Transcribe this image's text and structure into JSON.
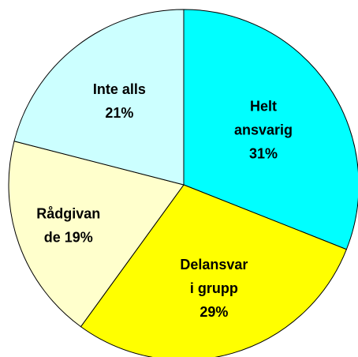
{
  "chart_data": {
    "type": "pie",
    "labels": [
      [
        "Helt",
        "ansvarig",
        "31%"
      ],
      [
        "Delansvar",
        "i grupp",
        "29%"
      ],
      [
        "Rådgivan",
        "de 19%"
      ],
      [
        "Inte alls",
        "21%"
      ]
    ],
    "values": [
      31,
      29,
      19,
      21
    ],
    "colors": [
      "#00ffff",
      "#ffff00",
      "#ffffcc",
      "#ccffff"
    ]
  }
}
